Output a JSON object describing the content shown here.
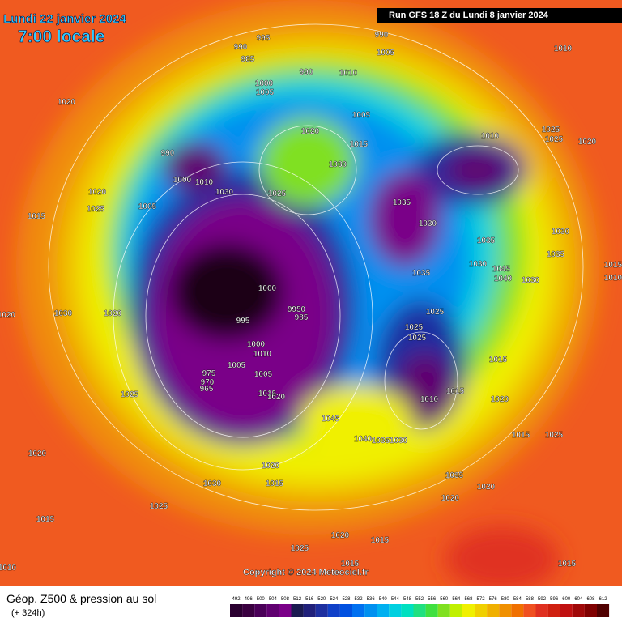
{
  "header": {
    "date": "Lundi 22 janvier 2024",
    "time": "7:00 locale",
    "run": "Run GFS 18 Z du Lundi 8 janvier 2024"
  },
  "copyright": "Copyright © 2024 Meteociel.fr",
  "footer": {
    "title": "Géop. Z500 & pression au sol",
    "lead": "(+ 324h)"
  },
  "isobars": [
    995,
    990,
    985,
    990,
    1000,
    1005,
    990,
    1005,
    1010,
    1010,
    1020,
    1005,
    1020,
    1015,
    1010,
    1025,
    1025,
    1020,
    990,
    1030,
    1000,
    1010,
    1030,
    1025,
    1020,
    1025,
    1005,
    1015,
    1035,
    1030,
    1030,
    1035,
    1035,
    1030,
    1045,
    1040,
    1030,
    1035,
    1000,
    1030,
    1020,
    1020,
    9950,
    995,
    985,
    1025,
    1025,
    1025,
    1000,
    1010,
    1005,
    975,
    1005,
    970,
    965,
    1015,
    1020,
    1025,
    1010,
    1015,
    1020,
    1015,
    1045,
    1040,
    1035,
    1030,
    1015,
    1025,
    1020,
    1020,
    1030,
    1015,
    1035,
    1020,
    1020,
    1025,
    1015,
    1020,
    1015,
    1025,
    1015,
    1015,
    1010,
    1010,
    1015
  ],
  "colorbar": {
    "values": [
      492,
      496,
      500,
      504,
      508,
      512,
      516,
      520,
      524,
      528,
      532,
      536,
      540,
      544,
      548,
      552,
      556,
      560,
      564,
      568,
      572,
      576,
      580,
      584,
      588,
      592,
      596,
      600,
      604,
      608,
      612
    ],
    "colors": [
      "#2a0030",
      "#3a0040",
      "#4a0058",
      "#600070",
      "#7a0088",
      "#1a1a50",
      "#20207a",
      "#1d2fa0",
      "#1040c8",
      "#0050e0",
      "#0070f0",
      "#0090f0",
      "#00b0f0",
      "#00d0e0",
      "#00e0c0",
      "#20e080",
      "#40e040",
      "#80e020",
      "#c0f000",
      "#f0f000",
      "#f0d000",
      "#f0b000",
      "#f09000",
      "#f07000",
      "#f05020",
      "#e03020",
      "#d02010",
      "#c01010",
      "#a00808",
      "#800000",
      "#500000"
    ]
  }
}
